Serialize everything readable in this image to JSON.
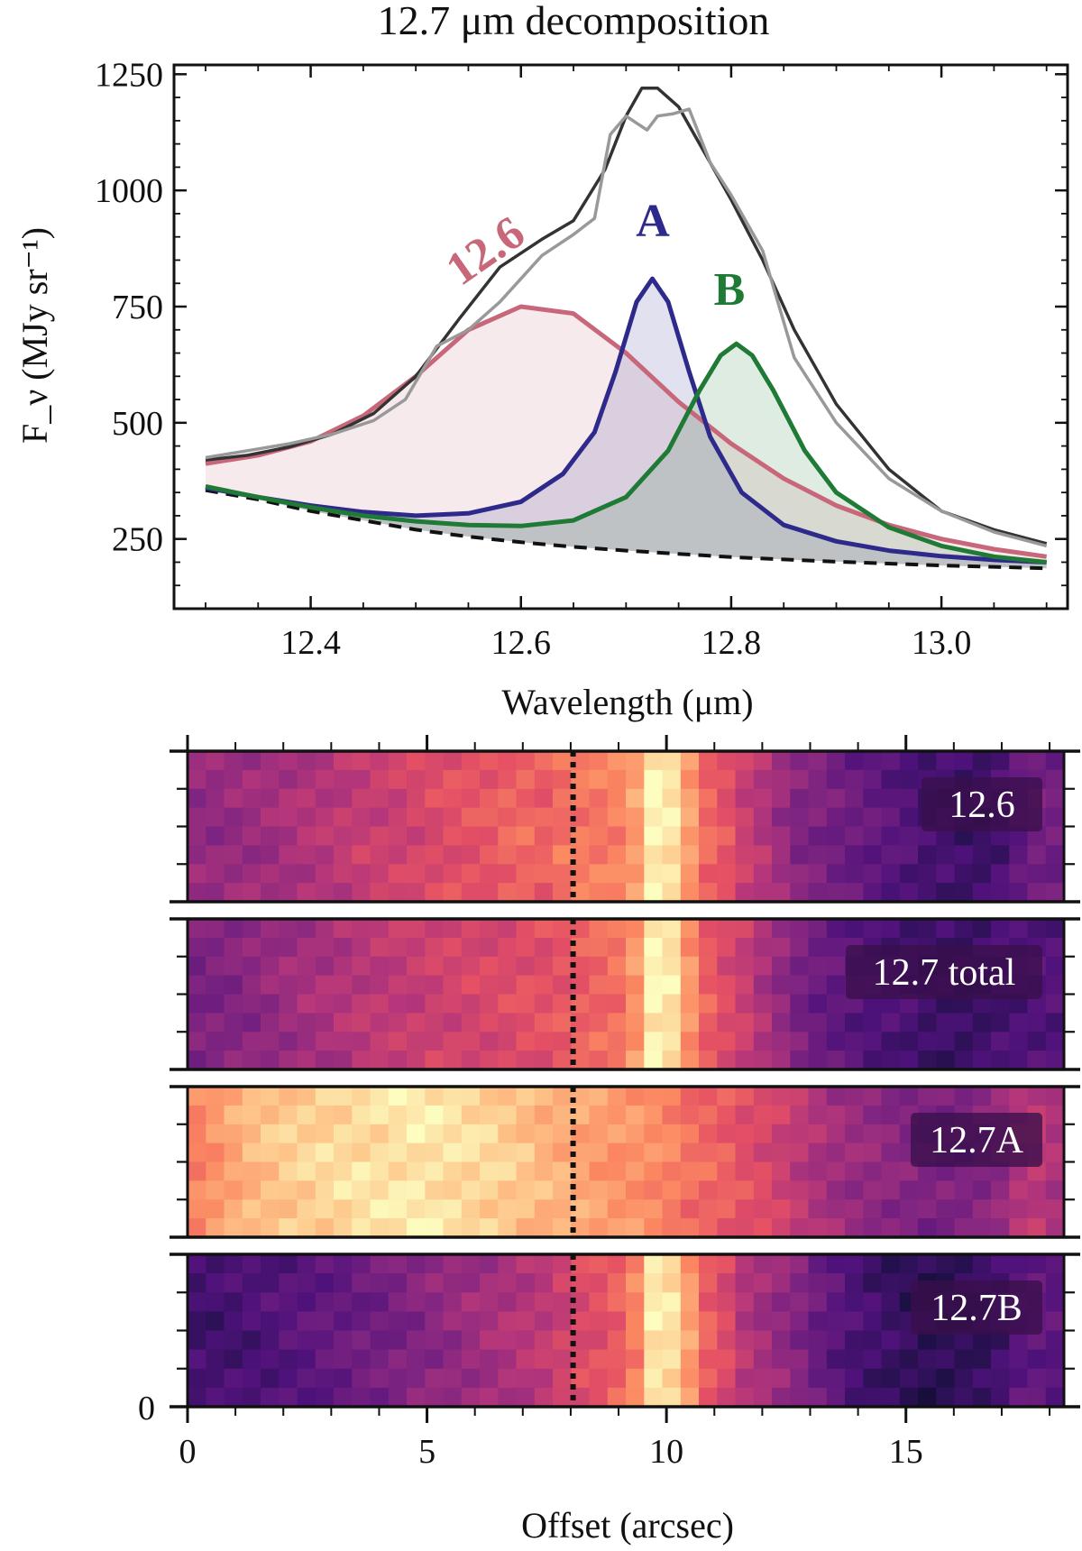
{
  "chart_data": [
    {
      "type": "line",
      "title": "12.7 μm decomposition",
      "xlabel": "Wavelength (μm)",
      "ylabel": "F_ν (MJy sr⁻¹)",
      "xlim": [
        12.27,
        13.12
      ],
      "ylim": [
        100,
        1270
      ],
      "xticks": [
        "12.4",
        "12.6",
        "12.8",
        "13.0"
      ],
      "yticks": [
        "250",
        "500",
        "750",
        "1000",
        "1250"
      ],
      "grid": false,
      "legend": "none",
      "annotations": [
        {
          "text": "12.6",
          "color": "#c8677a"
        },
        {
          "text": "A",
          "color": "#2e2a8c"
        },
        {
          "text": "B",
          "color": "#1e7a35"
        }
      ],
      "series": [
        {
          "role": "observed",
          "color": "#999999",
          "x": [
            12.3,
            12.34,
            12.38,
            12.42,
            12.46,
            12.49,
            12.52,
            12.55,
            12.58,
            12.62,
            12.65,
            12.67,
            12.685,
            12.7,
            12.72,
            12.73,
            12.745,
            12.76,
            12.78,
            12.8,
            12.83,
            12.86,
            12.9,
            12.95,
            13.0,
            13.05,
            13.1
          ],
          "y": [
            425,
            440,
            455,
            475,
            505,
            550,
            665,
            700,
            760,
            860,
            905,
            940,
            1120,
            1160,
            1130,
            1160,
            1165,
            1175,
            1060,
            990,
            870,
            640,
            500,
            380,
            310,
            265,
            235
          ]
        },
        {
          "role": "total",
          "color": "#333333",
          "x": [
            12.3,
            12.34,
            12.38,
            12.42,
            12.46,
            12.5,
            12.54,
            12.58,
            12.62,
            12.65,
            12.68,
            12.7,
            12.715,
            12.73,
            12.75,
            12.77,
            12.8,
            12.83,
            12.86,
            12.9,
            12.95,
            13.0,
            13.05,
            13.1
          ],
          "y": [
            420,
            430,
            448,
            475,
            520,
            600,
            720,
            835,
            895,
            935,
            1045,
            1160,
            1220,
            1220,
            1180,
            1100,
            980,
            850,
            700,
            540,
            400,
            310,
            270,
            240
          ]
        },
        {
          "name": "12.6",
          "color": "#c8677a",
          "center": 12.605,
          "peak": 750,
          "hwhm": 0.1,
          "x": [
            12.3,
            12.35,
            12.4,
            12.45,
            12.5,
            12.55,
            12.6,
            12.65,
            12.7,
            12.75,
            12.8,
            12.85,
            12.9,
            12.95,
            13.0,
            13.05,
            13.1
          ],
          "y": [
            412,
            430,
            460,
            515,
            600,
            700,
            750,
            735,
            650,
            545,
            455,
            380,
            322,
            280,
            250,
            228,
            212
          ]
        },
        {
          "name": "A",
          "color": "#2e2a8c",
          "center": 12.725,
          "peak": 810,
          "hwhm": 0.042,
          "x": [
            12.3,
            12.35,
            12.4,
            12.45,
            12.5,
            12.55,
            12.6,
            12.64,
            12.67,
            12.69,
            12.71,
            12.725,
            12.74,
            12.76,
            12.78,
            12.81,
            12.85,
            12.9,
            12.95,
            13.0,
            13.05,
            13.1
          ],
          "y": [
            360,
            340,
            322,
            308,
            300,
            305,
            330,
            390,
            480,
            610,
            760,
            810,
            760,
            610,
            470,
            350,
            280,
            245,
            225,
            213,
            205,
            200
          ]
        },
        {
          "name": "B",
          "color": "#1e7a35",
          "center": 12.805,
          "peak": 670,
          "hwhm": 0.05,
          "x": [
            12.3,
            12.35,
            12.4,
            12.45,
            12.5,
            12.55,
            12.6,
            12.65,
            12.7,
            12.74,
            12.77,
            12.79,
            12.805,
            12.82,
            12.84,
            12.87,
            12.9,
            12.95,
            13.0,
            13.05,
            13.1
          ],
          "y": [
            363,
            340,
            318,
            300,
            288,
            280,
            278,
            290,
            340,
            440,
            570,
            645,
            670,
            645,
            570,
            440,
            350,
            275,
            235,
            212,
            200
          ]
        },
        {
          "role": "baseline",
          "color": "#111111",
          "dashed": true,
          "x": [
            12.3,
            12.35,
            12.4,
            12.45,
            12.5,
            12.55,
            12.6,
            12.65,
            12.7,
            12.75,
            12.8,
            12.85,
            12.9,
            12.95,
            13.0,
            13.05,
            13.1
          ],
          "y": [
            355,
            335,
            310,
            290,
            270,
            255,
            243,
            233,
            225,
            218,
            211,
            206,
            201,
            197,
            193,
            190,
            187
          ]
        }
      ]
    },
    {
      "type": "heatmap",
      "colormap": "magma",
      "xlabel": "Offset (arcsec)",
      "xlim": [
        0,
        18.3
      ],
      "xticks": [
        "0",
        "5",
        "10",
        "15"
      ],
      "ytick_label": "0",
      "marker_offset": 8.05,
      "marker_style": "dotted vertical line",
      "panels": [
        {
          "label": "12.6",
          "profile": [
            0.42,
            0.42,
            0.43,
            0.44,
            0.45,
            0.47,
            0.49,
            0.5,
            0.52,
            0.54,
            0.55,
            0.56,
            0.58,
            0.6,
            0.62,
            0.63,
            0.64,
            0.67,
            0.68,
            0.66,
            0.7,
            0.72,
            0.72,
            0.74,
            0.8,
            0.98,
            0.95,
            0.8,
            0.68,
            0.63,
            0.55,
            0.5,
            0.44,
            0.38,
            0.37,
            0.34,
            0.32,
            0.3,
            0.28,
            0.26,
            0.22,
            0.22,
            0.2,
            0.2,
            0.23,
            0.3,
            0.35,
            0.34
          ]
        },
        {
          "label": "12.7 total",
          "profile": [
            0.36,
            0.37,
            0.38,
            0.4,
            0.42,
            0.44,
            0.46,
            0.47,
            0.49,
            0.51,
            0.52,
            0.53,
            0.54,
            0.56,
            0.57,
            0.58,
            0.59,
            0.6,
            0.62,
            0.62,
            0.64,
            0.66,
            0.68,
            0.7,
            0.78,
            0.98,
            0.95,
            0.78,
            0.66,
            0.6,
            0.55,
            0.48,
            0.42,
            0.36,
            0.32,
            0.3,
            0.28,
            0.26,
            0.25,
            0.23,
            0.2,
            0.2,
            0.19,
            0.2,
            0.23,
            0.25,
            0.26,
            0.26
          ]
        },
        {
          "label": "12.7A",
          "profile": [
            0.74,
            0.78,
            0.82,
            0.86,
            0.88,
            0.9,
            0.91,
            0.92,
            0.93,
            0.94,
            0.94,
            0.95,
            0.96,
            0.95,
            0.94,
            0.93,
            0.92,
            0.9,
            0.88,
            0.85,
            0.84,
            0.82,
            0.8,
            0.78,
            0.78,
            0.76,
            0.74,
            0.7,
            0.68,
            0.66,
            0.62,
            0.6,
            0.56,
            0.52,
            0.48,
            0.45,
            0.43,
            0.42,
            0.4,
            0.38,
            0.36,
            0.36,
            0.36,
            0.38,
            0.42,
            0.5,
            0.52,
            0.48
          ]
        },
        {
          "label": "12.7B",
          "profile": [
            0.22,
            0.22,
            0.23,
            0.24,
            0.25,
            0.27,
            0.28,
            0.3,
            0.31,
            0.33,
            0.34,
            0.36,
            0.38,
            0.4,
            0.42,
            0.44,
            0.46,
            0.48,
            0.5,
            0.52,
            0.56,
            0.6,
            0.62,
            0.66,
            0.74,
            0.96,
            0.94,
            0.8,
            0.66,
            0.6,
            0.5,
            0.46,
            0.42,
            0.38,
            0.32,
            0.28,
            0.24,
            0.22,
            0.2,
            0.18,
            0.16,
            0.16,
            0.17,
            0.18,
            0.22,
            0.28,
            0.3,
            0.28
          ]
        }
      ]
    }
  ]
}
